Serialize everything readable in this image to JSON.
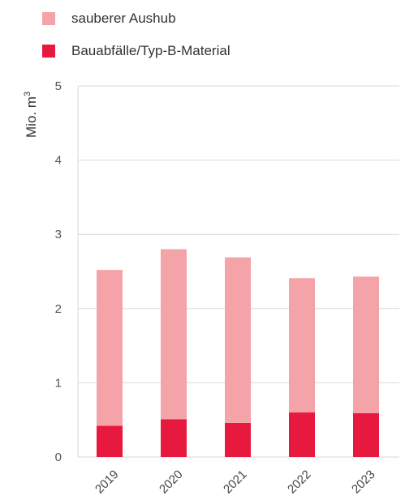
{
  "chart_data": {
    "type": "bar",
    "stacked": true,
    "categories": [
      "2019",
      "2020",
      "2021",
      "2022",
      "2023"
    ],
    "series": [
      {
        "name": "Bauabfälle/Typ-B-Material",
        "color": "#e8193f",
        "values": [
          0.42,
          0.51,
          0.46,
          0.6,
          0.59
        ]
      },
      {
        "name": "sauberer Aushub",
        "color": "#f4a3a9",
        "values": [
          2.1,
          2.29,
          2.23,
          1.81,
          1.84
        ]
      }
    ],
    "ylabel": "Mio. m",
    "ylabel_superscript": "3",
    "ylim": [
      0,
      5
    ],
    "yticks": [
      "0",
      "1",
      "2",
      "3",
      "4",
      "5"
    ],
    "grid": true,
    "legend_position": "top-left"
  }
}
